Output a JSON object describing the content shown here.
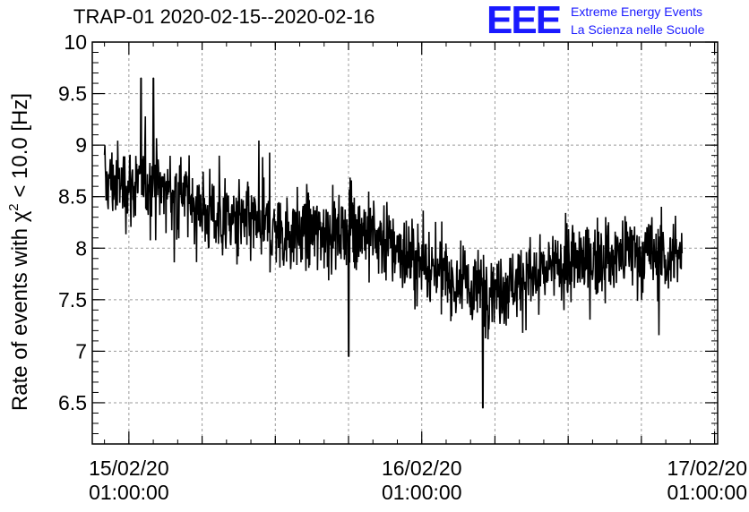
{
  "header": {
    "title": "TRAP-01 2020-02-15--2020-02-16",
    "logo": "EEE",
    "logo_line1": "Extreme Energy Events",
    "logo_line2": "La Scienza nelle Scuole"
  },
  "colors": {
    "line": "#000000",
    "grid": "#9a9a9a",
    "logo": "#1a1aff"
  },
  "chart_data": {
    "type": "line",
    "title": "TRAP-01 2020-02-15--2020-02-16",
    "ylabel_parts": {
      "prefix": "Rate of events with ",
      "symbol": "χ",
      "sup": "2",
      "suffix": " < 10.0 [Hz]"
    },
    "xlabel": "",
    "xlim": [
      "2020-02-14 22:00:00",
      "2020-02-17 01:15:00"
    ],
    "ylim": [
      6.1,
      10.0
    ],
    "yticks": [
      6.5,
      7,
      7.5,
      8,
      8.5,
      9,
      9.5,
      10
    ],
    "ytick_labels": [
      "6.5",
      "7",
      "7.5",
      "8",
      "8.5",
      "9",
      "9.5",
      "10"
    ],
    "xticks": [
      {
        "t": "2020-02-15 01:00:00",
        "date": "15/02/20",
        "time": "01:00:00"
      },
      {
        "t": "2020-02-16 01:00:00",
        "date": "16/02/20",
        "time": "01:00:00"
      },
      {
        "t": "2020-02-17 01:00:00",
        "date": "17/02/20",
        "time": "01:00:00"
      }
    ],
    "grid": true,
    "series": [
      {
        "x_start": "2020-02-14 23:00:00",
        "x_end": "2020-02-16 22:20:00",
        "approx_points": 1400,
        "trend_time": [
          "2020-02-14 23:00:00",
          "2020-02-15 05:00:00",
          "2020-02-15 08:00:00",
          "2020-02-15 14:00:00",
          "2020-02-15 20:00:00",
          "2020-02-16 00:00:00",
          "2020-02-16 05:00:00",
          "2020-02-16 08:00:00",
          "2020-02-16 12:00:00",
          "2020-02-16 17:00:00",
          "2020-02-16 22:20:00"
        ],
        "trend_rate": [
          8.65,
          8.55,
          8.3,
          8.15,
          8.2,
          7.9,
          7.6,
          7.65,
          7.8,
          7.95,
          7.9
        ],
        "noise_halfwidth": 0.3,
        "peaks": [
          [
            "2020-02-15 02:00:00",
            9.65
          ],
          [
            "2020-02-15 03:00:00",
            9.65
          ]
        ],
        "troughs": [
          [
            "2020-02-16 06:00:00",
            6.45
          ],
          [
            "2020-02-15 19:00:00",
            6.95
          ]
        ]
      }
    ]
  }
}
